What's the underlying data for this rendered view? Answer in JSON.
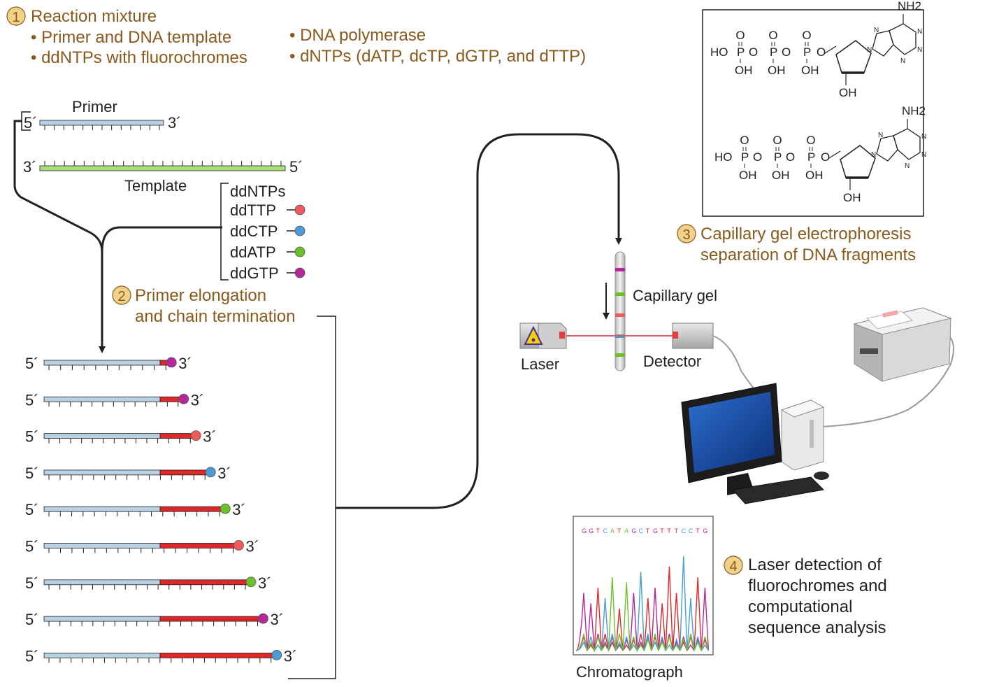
{
  "colors": {
    "step_text": "#8a5a1c",
    "step_circle": "#f2d28a",
    "primer_blue": "#b7d3e3",
    "template_green": "#a6e07a",
    "extension_red": "#e0282a",
    "ddTTP": "#ef5b5b",
    "ddCTP": "#4a9bd6",
    "ddATP": "#6cc02a",
    "ddGTP": "#b5279a"
  },
  "step1": {
    "number": "1",
    "title": "Reaction mixture",
    "items": [
      "• Primer and DNA template",
      "• ddNTPs with fluorochromes",
      "• DNA polymerase",
      "• dNTPs (dATP, dcTP, dGTP, and dTTP)"
    ]
  },
  "strands": {
    "primer_label": "Primer",
    "template_label": "Template",
    "five_prime": "5´",
    "three_prime": "3´"
  },
  "ddntps": {
    "title": "ddNTPs",
    "items": [
      {
        "label": "ddTTP",
        "color": "#ef5b5b"
      },
      {
        "label": "ddCTP",
        "color": "#4a9bd6"
      },
      {
        "label": "ddATP",
        "color": "#6cc02a"
      },
      {
        "label": "ddGTP",
        "color": "#b5279a"
      }
    ]
  },
  "step2": {
    "number": "2",
    "title_line1": "Primer elongation",
    "title_line2": "and chain termination"
  },
  "fragments": [
    {
      "extension": 0.7,
      "terminator": "#b5279a"
    },
    {
      "extension": 1.7,
      "terminator": "#b5279a"
    },
    {
      "extension": 2.7,
      "terminator": "#ef5b5b"
    },
    {
      "extension": 3.9,
      "terminator": "#4a9bd6"
    },
    {
      "extension": 5.1,
      "terminator": "#6cc02a"
    },
    {
      "extension": 6.2,
      "terminator": "#ef5b5b"
    },
    {
      "extension": 7.2,
      "terminator": "#6cc02a"
    },
    {
      "extension": 8.2,
      "terminator": "#b5279a"
    },
    {
      "extension": 9.3,
      "terminator": "#4a9bd6"
    }
  ],
  "molecules": [
    {
      "phosphates": [
        "HO",
        "P",
        "O",
        "P",
        "O",
        "P",
        "O"
      ],
      "hydroxyls": [
        "OH",
        "OH",
        "OH"
      ],
      "oxo": [
        "O",
        "O",
        "O"
      ],
      "amine": "NH2",
      "ring_n": "N",
      "sugar_oh": "OH"
    },
    {
      "phosphates": [
        "HO",
        "P",
        "O",
        "P",
        "O",
        "P",
        "O"
      ],
      "hydroxyls": [
        "OH",
        "OH",
        "OH"
      ],
      "oxo": [
        "O",
        "O",
        "O"
      ],
      "amine": "NH2",
      "ring_n": "N",
      "sugar_oh": "OH"
    }
  ],
  "step3": {
    "number": "3",
    "title_line1": "Capillary gel electrophoresis",
    "title_line2": "separation of DNA fragments"
  },
  "apparatus": {
    "capillary_label": "Capillary gel",
    "laser_label": "Laser",
    "detector_label": "Detector"
  },
  "chromatograph": {
    "sequence": "GGTCATAGCTGTTTCCTG",
    "label": "Chromatograph"
  },
  "step4": {
    "number": "4",
    "line1": "Laser detection of",
    "line2": "fluorochromes and",
    "line3": "computational",
    "line4": "sequence analysis"
  }
}
